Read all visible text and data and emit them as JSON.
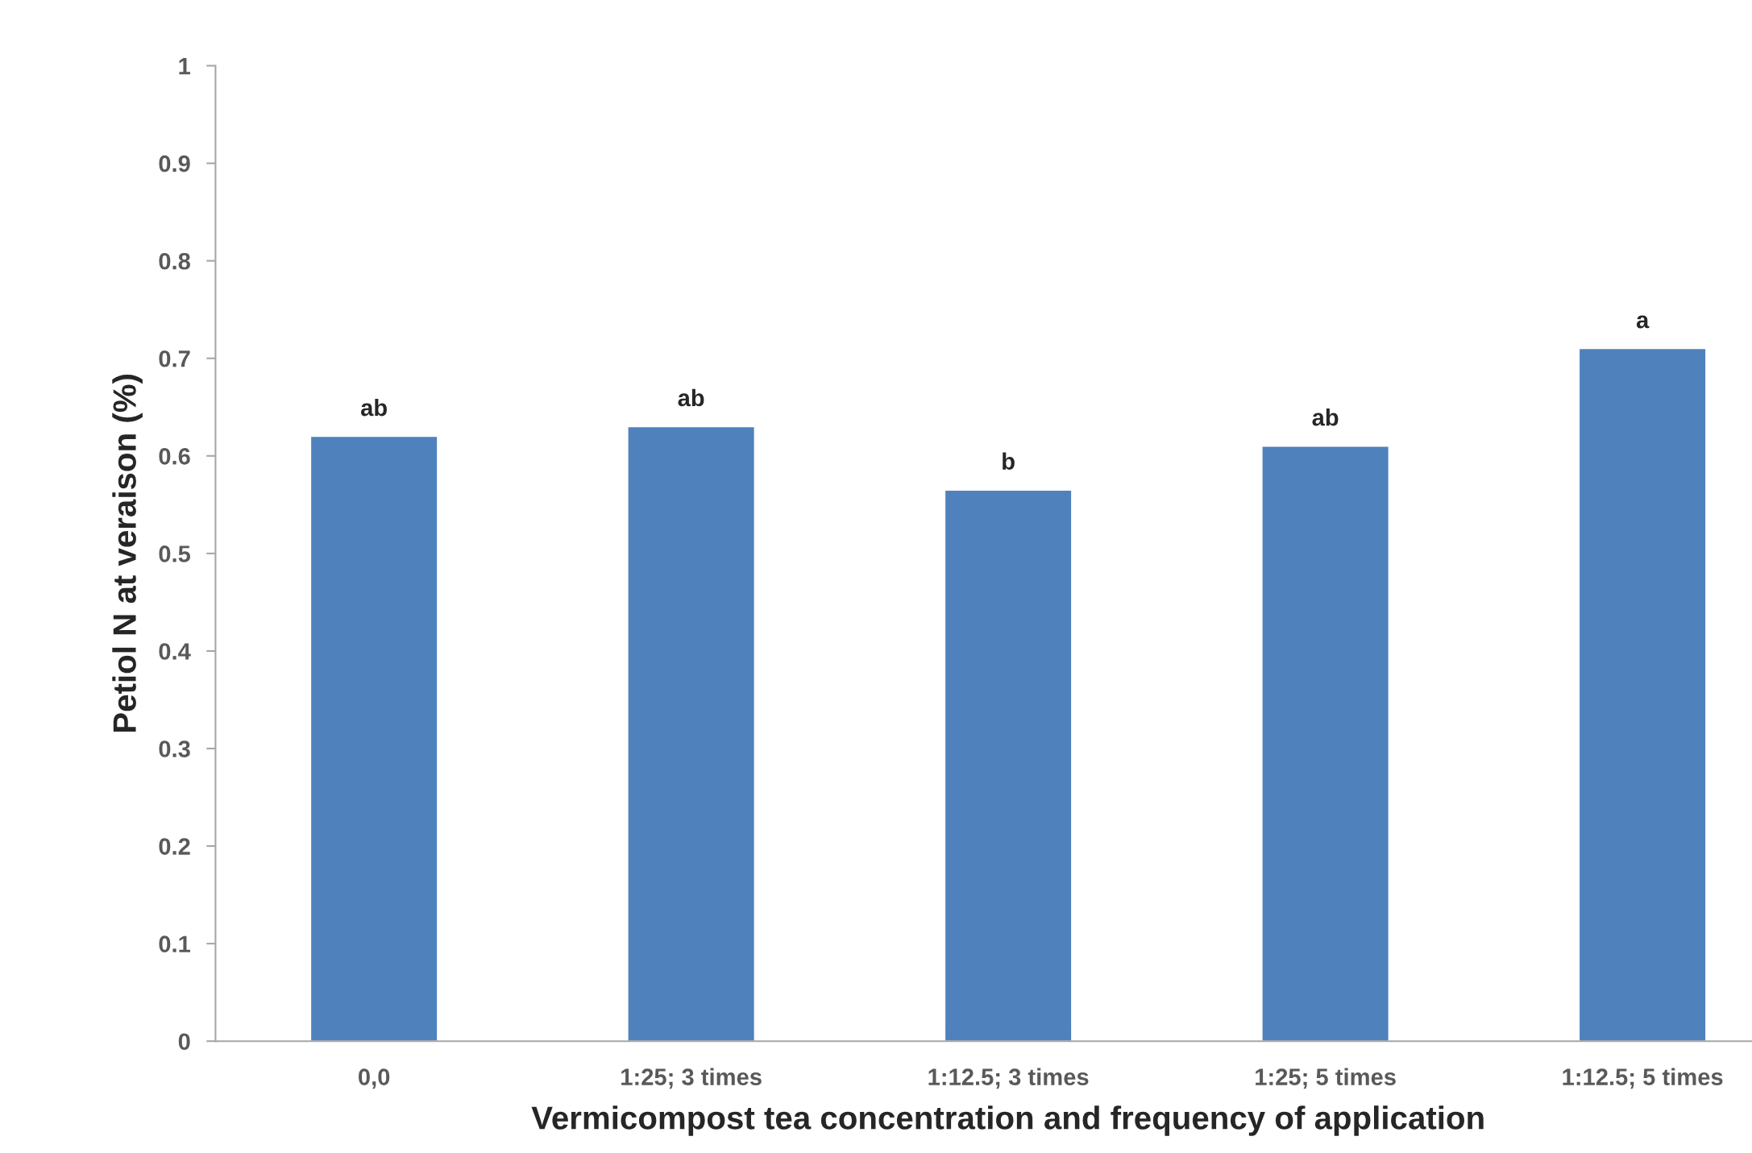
{
  "chart_data": {
    "type": "bar",
    "xlabel": "Vermicompost tea concentration and frequency of application",
    "ylabel": "Petiol N at veraison (%)",
    "categories": [
      "0,0",
      "1:25; 3 times",
      "1:12.5; 3 times",
      "1:25; 5 times",
      "1:12.5; 5 times"
    ],
    "values": [
      0.62,
      0.63,
      0.565,
      0.61,
      0.71
    ],
    "color": "#4f81bd",
    "ylim": [
      0,
      1
    ],
    "yticks": [
      0,
      0.1,
      0.2,
      0.3,
      0.4,
      0.5,
      0.6,
      0.7,
      0.8,
      0.9,
      1
    ],
    "grid": false,
    "annotations": [
      {
        "text": "ab",
        "x": "0,0",
        "y": 0.62
      },
      {
        "text": "ab",
        "x": "1:25; 3 times",
        "y": 0.63
      },
      {
        "text": "b",
        "x": "1:12.5; 3 times",
        "y": 0.565
      },
      {
        "text": "ab",
        "x": "1:25; 5 times",
        "y": 0.61
      },
      {
        "text": "a",
        "x": "1:12.5; 5 times",
        "y": 0.71
      }
    ]
  }
}
